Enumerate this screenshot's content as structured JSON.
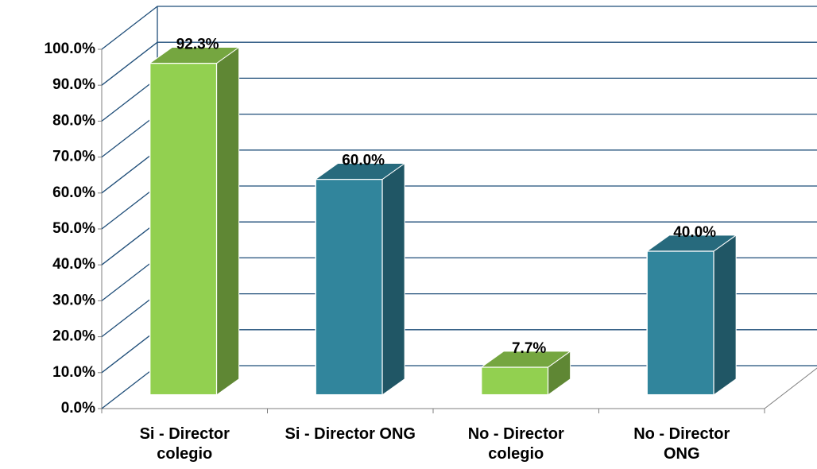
{
  "chart_data": {
    "type": "bar3d",
    "categories": [
      "Si - Director colegio",
      "Si - Director ONG",
      "No - Director colegio",
      "No - Director ONG"
    ],
    "values": [
      92.3,
      60.0,
      7.7,
      40.0
    ],
    "value_labels": [
      "92.3%",
      "60.0%",
      "7.7%",
      "40.0%"
    ],
    "colors": [
      "#92d050",
      "#31859c",
      "#92d050",
      "#31859c"
    ],
    "ylim": [
      0,
      100
    ],
    "yticks": [
      {
        "value": 0,
        "label": "0.0%"
      },
      {
        "value": 10,
        "label": "10.0%"
      },
      {
        "value": 20,
        "label": "20.0%"
      },
      {
        "value": 30,
        "label": "30.0%"
      },
      {
        "value": 40,
        "label": "40.0%"
      },
      {
        "value": 50,
        "label": "50.0%"
      },
      {
        "value": 60,
        "label": "60.0%"
      },
      {
        "value": 70,
        "label": "70.0%"
      },
      {
        "value": 80,
        "label": "80.0%"
      },
      {
        "value": 90,
        "label": "90.0%"
      },
      {
        "value": 100,
        "label": "100.0%"
      }
    ],
    "grid": true
  }
}
